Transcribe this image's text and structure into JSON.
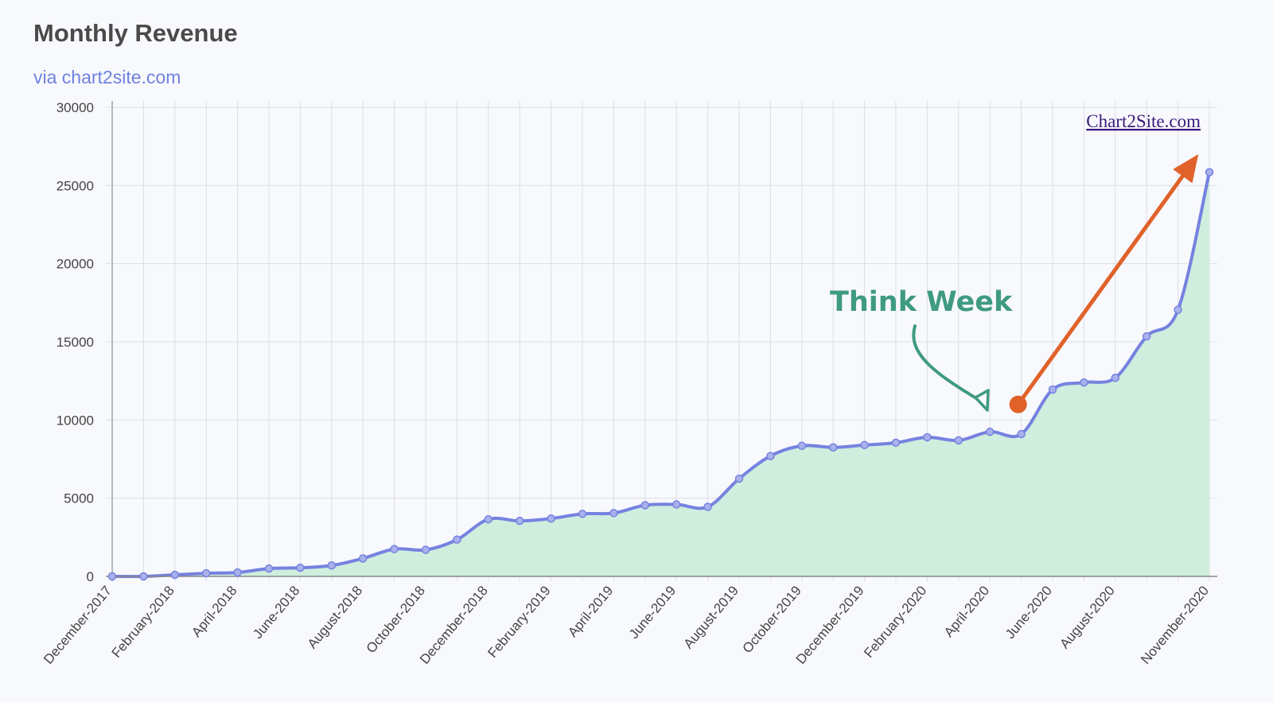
{
  "header": {
    "title": "Monthly Revenue",
    "subtitle": "via chart2site.com"
  },
  "watermark": "Chart2Site.com",
  "annotation": {
    "label": "Think Week",
    "color": "#3f9a82",
    "trend_arrow_color": "#e0622a",
    "trend_start": {
      "month": "May-2020",
      "value": 11000
    },
    "trend_end": {
      "month": "November-2020",
      "value": 27000
    }
  },
  "colors": {
    "line": "#7682e0",
    "fill": "#cfeedd",
    "grid": "#dcdee6",
    "axis": "#888888"
  },
  "chart_data": {
    "type": "area",
    "title": "Monthly Revenue",
    "subtitle": "via chart2site.com",
    "xlabel": "",
    "ylabel": "",
    "ylim": [
      0,
      30000
    ],
    "yticks": [
      0,
      5000,
      10000,
      15000,
      20000,
      25000,
      30000
    ],
    "grid": true,
    "x": [
      "December-2017",
      "January-2018",
      "February-2018",
      "March-2018",
      "April-2018",
      "May-2018",
      "June-2018",
      "July-2018",
      "August-2018",
      "September-2018",
      "October-2018",
      "November-2018",
      "December-2018",
      "January-2019",
      "February-2019",
      "March-2019",
      "April-2019",
      "May-2019",
      "June-2019",
      "July-2019",
      "August-2019",
      "September-2019",
      "October-2019",
      "November-2019",
      "December-2019",
      "January-2020",
      "February-2020",
      "March-2020",
      "April-2020",
      "May-2020",
      "June-2020",
      "July-2020",
      "August-2020",
      "September-2020",
      "October-2020",
      "November-2020"
    ],
    "x_tick_labels": [
      "December-2017",
      "February-2018",
      "April-2018",
      "June-2018",
      "August-2018",
      "October-2018",
      "December-2018",
      "February-2019",
      "April-2019",
      "June-2019",
      "August-2019",
      "October-2019",
      "December-2019",
      "February-2020",
      "April-2020",
      "June-2020",
      "August-2020",
      "November-2020"
    ],
    "series": [
      {
        "name": "Monthly Revenue",
        "values": [
          0,
          0,
          100,
          200,
          250,
          500,
          550,
          700,
          1150,
          1750,
          1700,
          2350,
          3650,
          3550,
          3700,
          4000,
          4050,
          4550,
          4600,
          4450,
          6250,
          7700,
          8350,
          8250,
          8400,
          8550,
          8900,
          8700,
          9250,
          9100,
          11950,
          12400,
          12700,
          15350,
          17050,
          25850
        ]
      }
    ]
  }
}
